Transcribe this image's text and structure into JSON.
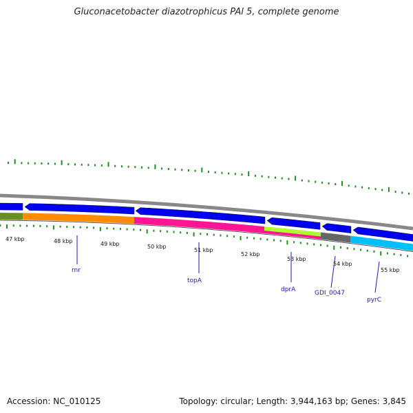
{
  "title": "Gluconacetobacter diazotrophicus PAl 5, complete genome",
  "accession_label": "Accession: NC_010125",
  "topology_label": "Topology: circular; Length: 3,944,163 bp; Genes: 3,845",
  "colors": {
    "backbone": "#888888",
    "forward_strand": "#0000ee",
    "gc_ticks": "#228b22",
    "gene_label": "#1a1aa8"
  },
  "kbp_labels": [
    "47 kbp",
    "48 kbp",
    "49 kbp",
    "50 kbp",
    "51 kbp",
    "52 kbp",
    "53 kbp",
    "54 kbp",
    "55 kbp"
  ],
  "gene_labels": [
    "rnr",
    "topA",
    "dprA",
    "GDI_0047",
    "pyrC"
  ],
  "cog_colors": [
    "#6b8e23",
    "#ff8c00",
    "#ff1493",
    "#adff2f",
    "#666666",
    "#00bfff"
  ]
}
